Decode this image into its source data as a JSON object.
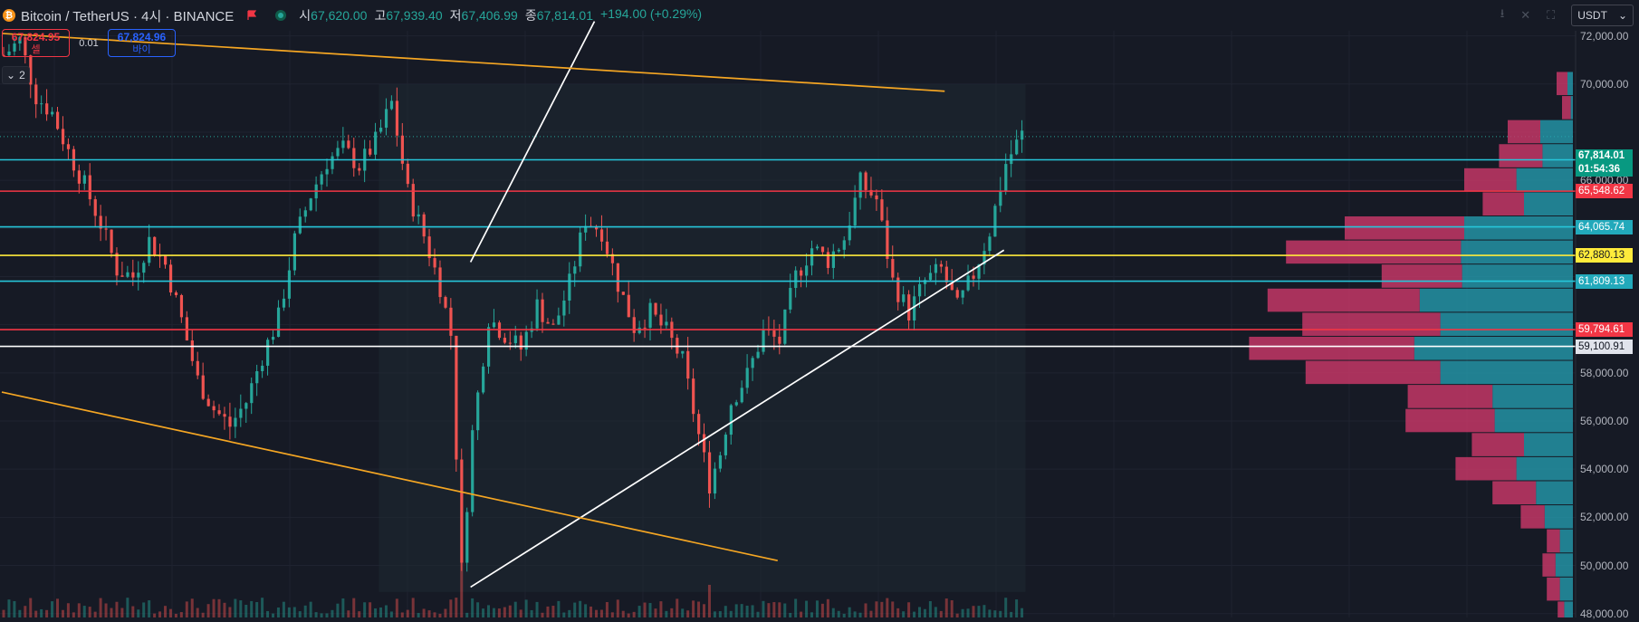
{
  "header": {
    "symbol_title": "Bitcoin / TetherUS · 4시 · BINANCE",
    "coin_glyph": "₿",
    "ohlc": [
      {
        "label": "시",
        "value": "67,620.00"
      },
      {
        "label": "고",
        "value": "67,939.40"
      },
      {
        "label": "저",
        "value": "67,406.99"
      },
      {
        "label": "종",
        "value": "67,814.01"
      }
    ],
    "change": "+194.00 (+0.29%)",
    "currency": "USDT",
    "currency_caret": "⌄",
    "icons": [
      "download-icon",
      "close-icon",
      "fullscreen-icon"
    ]
  },
  "trade": {
    "sell_price": "67,824.95",
    "sell_label": "셀",
    "spread": "0.01",
    "buy_price": "67,824.96",
    "buy_label": "바이"
  },
  "collapse": {
    "caret": "⌄",
    "count": "2"
  },
  "colors": {
    "background": "#161a25",
    "up": "#26a69a",
    "down": "#ef5350",
    "orange_line": "#f5a623",
    "cyan_line": "#26c6da",
    "red_line": "#f23645",
    "yellow_line": "#ffeb3b",
    "vp_up": "#26a3b5",
    "vp_down": "#c33766"
  },
  "chart_data": {
    "type": "candlestick",
    "price_axis": {
      "range": [
        47500,
        73000
      ],
      "ticks": [
        {
          "value": 72000,
          "label": "72,000.00"
        },
        {
          "value": 70000,
          "label": "70,000.00"
        },
        {
          "value": 66000,
          "label": "66,000.00"
        },
        {
          "value": 58000,
          "label": "58,000.00"
        },
        {
          "value": 56000,
          "label": "56,000.00"
        },
        {
          "value": 54000,
          "label": "54,000.00"
        },
        {
          "value": 52000,
          "label": "52,000.00"
        },
        {
          "value": 50000,
          "label": "50,000.00"
        },
        {
          "value": 48000,
          "label": "48,000.00"
        }
      ]
    },
    "current_price": {
      "price": "67,814.01",
      "countdown": "01:54:36",
      "value": 67814.01
    },
    "horizontal_levels": [
      {
        "value": 66850.87,
        "label": "66,850.87",
        "color": "#26c6da"
      },
      {
        "value": 65548.62,
        "label": "65,548.62",
        "color": "#f23645"
      },
      {
        "value": 64065.74,
        "label": "64,065.74",
        "color": "#26c6da"
      },
      {
        "value": 62880.13,
        "label": "62,880.13",
        "color": "#ffeb3b"
      },
      {
        "value": 61809.13,
        "label": "61,809.13",
        "color": "#26c6da"
      },
      {
        "value": 59794.61,
        "label": "59,794.61",
        "color": "#f23645"
      },
      {
        "value": 59100.91,
        "label": "59,100.91",
        "color": "#ffffff"
      }
    ],
    "price_path": [
      [
        0,
        71200
      ],
      [
        3,
        71800
      ],
      [
        6,
        69500
      ],
      [
        9,
        68800
      ],
      [
        12,
        67200
      ],
      [
        15,
        65800
      ],
      [
        18,
        64200
      ],
      [
        21,
        62300
      ],
      [
        24,
        62000
      ],
      [
        27,
        63500
      ],
      [
        30,
        62500
      ],
      [
        33,
        60200
      ],
      [
        36,
        57700
      ],
      [
        39,
        56500
      ],
      [
        42,
        55800
      ],
      [
        45,
        56800
      ],
      [
        48,
        58700
      ],
      [
        51,
        60300
      ],
      [
        54,
        63500
      ],
      [
        57,
        65400
      ],
      [
        60,
        66800
      ],
      [
        63,
        67300
      ],
      [
        66,
        66600
      ],
      [
        69,
        67600
      ],
      [
        72,
        69200
      ],
      [
        75,
        65500
      ],
      [
        78,
        63700
      ],
      [
        81,
        61600
      ],
      [
        83,
        59600
      ],
      [
        85,
        49800
      ],
      [
        87,
        55500
      ],
      [
        90,
        60300
      ],
      [
        93,
        59600
      ],
      [
        96,
        59000
      ],
      [
        99,
        60800
      ],
      [
        102,
        59800
      ],
      [
        105,
        61700
      ],
      [
        108,
        64400
      ],
      [
        111,
        63900
      ],
      [
        114,
        61700
      ],
      [
        117,
        59900
      ],
      [
        120,
        60500
      ],
      [
        123,
        59700
      ],
      [
        126,
        58500
      ],
      [
        129,
        55400
      ],
      [
        131,
        53400
      ],
      [
        133,
        54700
      ],
      [
        135,
        56800
      ],
      [
        138,
        57900
      ],
      [
        141,
        59700
      ],
      [
        144,
        59300
      ],
      [
        147,
        62000
      ],
      [
        150,
        63200
      ],
      [
        153,
        62700
      ],
      [
        156,
        63600
      ],
      [
        159,
        65900
      ],
      [
        162,
        65200
      ],
      [
        165,
        61800
      ],
      [
        168,
        60500
      ],
      [
        171,
        61800
      ],
      [
        174,
        62300
      ],
      [
        177,
        60700
      ],
      [
        180,
        62100
      ],
      [
        183,
        63900
      ],
      [
        186,
        66700
      ],
      [
        189,
        67900
      ]
    ],
    "trendlines": [
      {
        "color": "#ffffff",
        "points": [
          [
            87,
            62600
          ],
          [
            110,
            72600
          ]
        ]
      },
      {
        "color": "#ffffff",
        "points": [
          [
            87,
            49100
          ],
          [
            186,
            63100
          ]
        ]
      },
      {
        "color": "#f5a623",
        "points": [
          [
            0,
            72100
          ],
          [
            175,
            69700
          ]
        ]
      },
      {
        "color": "#f5a623",
        "points": [
          [
            0,
            57200
          ],
          [
            144,
            50200
          ]
        ]
      }
    ],
    "volume_profile": [
      {
        "price": 70000,
        "up": 0.05,
        "down": 0.1
      },
      {
        "price": 69000,
        "up": 0.02,
        "down": 0.08
      },
      {
        "price": 68000,
        "up": 0.3,
        "down": 0.3
      },
      {
        "price": 67000,
        "up": 0.28,
        "down": 0.4
      },
      {
        "price": 66000,
        "up": 0.52,
        "down": 0.48
      },
      {
        "price": 65000,
        "up": 0.45,
        "down": 0.38
      },
      {
        "price": 64000,
        "up": 1.0,
        "down": 1.1
      },
      {
        "price": 63000,
        "up": 1.03,
        "down": 1.61
      },
      {
        "price": 62000,
        "up": 1.02,
        "down": 0.74
      },
      {
        "price": 61000,
        "up": 1.41,
        "down": 1.4
      },
      {
        "price": 60000,
        "up": 1.22,
        "down": 1.27
      },
      {
        "price": 59000,
        "up": 1.46,
        "down": 1.52
      },
      {
        "price": 58000,
        "up": 1.22,
        "down": 1.24
      },
      {
        "price": 57000,
        "up": 0.74,
        "down": 0.78
      },
      {
        "price": 56000,
        "up": 0.72,
        "down": 0.82
      },
      {
        "price": 55000,
        "up": 0.45,
        "down": 0.48
      },
      {
        "price": 54000,
        "up": 0.52,
        "down": 0.56
      },
      {
        "price": 53000,
        "up": 0.34,
        "down": 0.4
      },
      {
        "price": 52000,
        "up": 0.26,
        "down": 0.22
      },
      {
        "price": 51000,
        "up": 0.12,
        "down": 0.12
      },
      {
        "price": 50000,
        "up": 0.16,
        "down": 0.12
      },
      {
        "price": 49000,
        "up": 0.12,
        "down": 0.12
      },
      {
        "price": 48000,
        "up": 0.08,
        "down": 0.06
      }
    ]
  }
}
